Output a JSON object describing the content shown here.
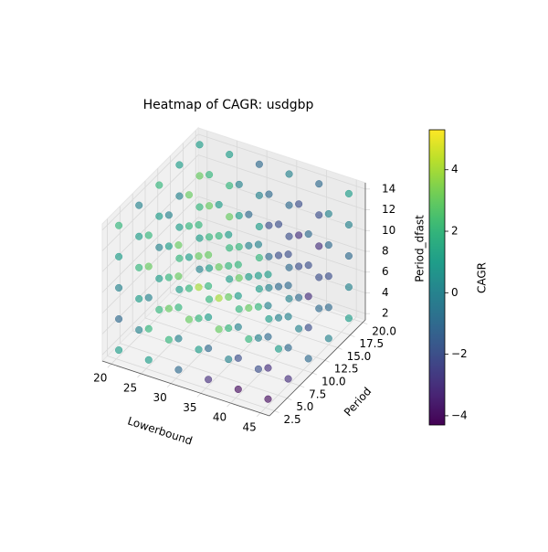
{
  "chart_data": {
    "type": "scatter3d",
    "title": "Heatmap of CAGR: usdgbp",
    "x_label": "Lowerbound",
    "y_label": "Period",
    "z_label": "Period_dfast",
    "colorbar_label": "CAGR",
    "colormap": "viridis",
    "grid": true,
    "x": [
      20,
      25,
      30,
      35,
      40,
      45
    ],
    "y": [
      3,
      7,
      11,
      15,
      19
    ],
    "z": [
      2,
      5,
      8,
      11,
      14
    ],
    "values": [
      [
        [
          1,
          -1,
          0,
          1,
          2
        ],
        [
          0,
          1,
          2,
          1,
          0
        ],
        [
          2,
          1,
          0,
          1,
          2
        ],
        [
          1,
          2,
          1,
          0,
          1
        ],
        [
          0,
          1,
          2,
          3,
          1
        ]
      ],
      [
        [
          1,
          2,
          0,
          3,
          2
        ],
        [
          2,
          3,
          2,
          1,
          0
        ],
        [
          3,
          2,
          1,
          2,
          3
        ],
        [
          2,
          1,
          2,
          3,
          2
        ],
        [
          1,
          2,
          3,
          2,
          1
        ]
      ],
      [
        [
          -1,
          0,
          2,
          3,
          3
        ],
        [
          1,
          2,
          4,
          3,
          2
        ],
        [
          3,
          4,
          3,
          2,
          1
        ],
        [
          2,
          3,
          2,
          1,
          0
        ],
        [
          1,
          2,
          1,
          0,
          -1
        ]
      ],
      [
        [
          -3,
          -1,
          1,
          2,
          3
        ],
        [
          0,
          2,
          3,
          2,
          1
        ],
        [
          2,
          3,
          1,
          0,
          -1
        ],
        [
          1,
          0,
          -1,
          -2,
          -1
        ],
        [
          0,
          -1,
          -2,
          -1,
          0
        ]
      ],
      [
        [
          -4,
          -2,
          0,
          1,
          2
        ],
        [
          -2,
          0,
          2,
          1,
          0
        ],
        [
          1,
          0,
          -1,
          -2,
          -2
        ],
        [
          0,
          -1,
          -2,
          -3,
          -2
        ],
        [
          -1,
          -2,
          -3,
          -2,
          -1
        ]
      ],
      [
        [
          -4,
          -3,
          -1,
          0,
          1
        ],
        [
          -3,
          -1,
          0,
          -1,
          -2
        ],
        [
          -1,
          -2,
          -3,
          -2,
          -1
        ],
        [
          0,
          -1,
          -2,
          -1,
          0
        ],
        [
          1,
          0,
          -1,
          0,
          1
        ]
      ]
    ],
    "xlim": [
      18.5,
      46.5
    ],
    "xticks": [
      20,
      25,
      30,
      35,
      40,
      45
    ],
    "ylim": [
      1.5,
      20.5
    ],
    "yticks": [
      {
        "value": 2.5,
        "label": "2.5"
      },
      {
        "value": 5,
        "label": "5.0"
      },
      {
        "value": 7.5,
        "label": "7.5"
      },
      {
        "value": 10,
        "label": "10.0"
      },
      {
        "value": 12.5,
        "label": "12.5"
      },
      {
        "value": 15,
        "label": "15.0"
      },
      {
        "value": 17.5,
        "label": "17.5"
      },
      {
        "value": 20,
        "label": "20.0"
      }
    ],
    "zlim": [
      1.4,
      14.6
    ],
    "zticks": [
      2,
      4,
      6,
      8,
      10,
      12,
      14
    ],
    "clim": [
      -4.3,
      5.3
    ],
    "cticks": [
      {
        "value": -4,
        "label": "−4"
      },
      {
        "value": -2,
        "label": "−2"
      },
      0,
      2,
      4
    ]
  }
}
